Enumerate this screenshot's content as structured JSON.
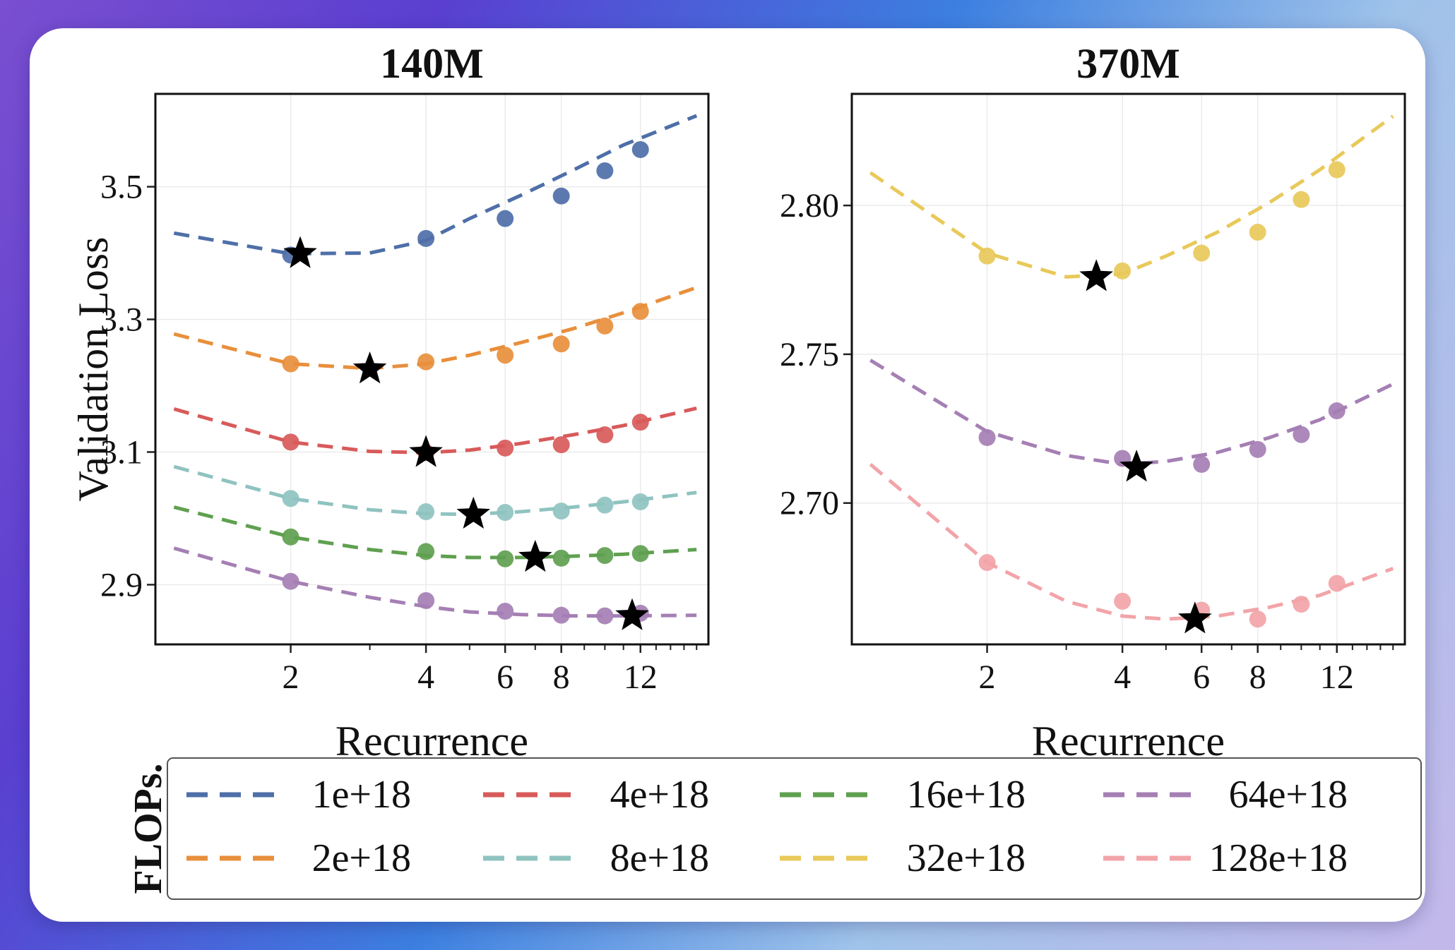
{
  "chart_data": [
    {
      "type": "line",
      "title": "140M",
      "xlabel": "Recurrence",
      "ylabel": "Validation Loss",
      "xscale": "log",
      "xlim": [
        1.0,
        17.0
      ],
      "ylim": [
        2.81,
        3.64
      ],
      "xticks": [
        2,
        4,
        6,
        8,
        12
      ],
      "xtick_labels": [
        "2",
        "4",
        "6",
        "8",
        "12"
      ],
      "yticks": [
        2.9,
        3.1,
        3.3,
        3.5
      ],
      "ytick_labels": [
        "2.9",
        "3.1",
        "3.3",
        "3.5"
      ],
      "grid": true,
      "series": [
        {
          "name": "1e+18",
          "color": "#4e6fa8",
          "x": [
            2,
            4,
            6,
            8,
            10,
            12
          ],
          "values": [
            3.397,
            3.422,
            3.452,
            3.486,
            3.524,
            3.556
          ],
          "fit": [
            3.43,
            3.399,
            3.4,
            3.419,
            3.452,
            3.487,
            3.525,
            3.563,
            3.607
          ],
          "optimum": {
            "x": 2.1,
            "y": 3.399
          }
        },
        {
          "name": "2e+18",
          "color": "#e88f3c",
          "x": [
            2,
            4,
            6,
            8,
            10,
            12
          ],
          "values": [
            3.233,
            3.236,
            3.246,
            3.263,
            3.29,
            3.312
          ],
          "fit": [
            3.278,
            3.233,
            3.226,
            3.233,
            3.246,
            3.265,
            3.286,
            3.31,
            3.348
          ],
          "optimum": {
            "x": 3.0,
            "y": 3.225
          }
        },
        {
          "name": "4e+18",
          "color": "#d85a5a",
          "x": [
            2,
            4,
            6,
            8,
            10,
            12
          ],
          "values": [
            3.115,
            3.099,
            3.106,
            3.111,
            3.126,
            3.145
          ],
          "fit": [
            3.165,
            3.115,
            3.101,
            3.099,
            3.103,
            3.113,
            3.126,
            3.14,
            3.166
          ],
          "optimum": {
            "x": 4.0,
            "y": 3.099
          }
        },
        {
          "name": "8e+18",
          "color": "#8fc3c0",
          "x": [
            2,
            4,
            6,
            8,
            10,
            12
          ],
          "values": [
            3.03,
            3.01,
            3.009,
            3.011,
            3.02,
            3.025
          ],
          "fit": [
            3.078,
            3.03,
            3.013,
            3.007,
            3.006,
            3.01,
            3.017,
            3.025,
            3.039
          ],
          "optimum": {
            "x": 5.1,
            "y": 3.006
          }
        },
        {
          "name": "16e+18",
          "color": "#5fa050",
          "x": [
            2,
            4,
            6,
            8,
            10,
            12
          ],
          "values": [
            2.972,
            2.95,
            2.939,
            2.94,
            2.944,
            2.947
          ],
          "fit": [
            3.017,
            2.972,
            2.953,
            2.944,
            2.941,
            2.941,
            2.943,
            2.946,
            2.953
          ],
          "optimum": {
            "x": 7.0,
            "y": 2.941
          }
        },
        {
          "name": "64e+18",
          "color": "#a57fb4",
          "x": [
            2,
            4,
            6,
            8,
            10,
            12
          ],
          "values": [
            2.905,
            2.876,
            2.86,
            2.854,
            2.853,
            2.857
          ],
          "fit": [
            2.955,
            2.905,
            2.881,
            2.867,
            2.859,
            2.855,
            2.853,
            2.853,
            2.854
          ],
          "optimum": {
            "x": 11.5,
            "y": 2.853
          }
        }
      ]
    },
    {
      "type": "line",
      "title": "370M",
      "xlabel": "Recurrence",
      "ylabel": "",
      "xscale": "log",
      "xlim": [
        1.0,
        17.0
      ],
      "ylim": [
        2.6525,
        2.8375
      ],
      "xticks": [
        2,
        4,
        6,
        8,
        12
      ],
      "xtick_labels": [
        "2",
        "4",
        "6",
        "8",
        "12"
      ],
      "yticks": [
        2.7,
        2.75,
        2.8
      ],
      "ytick_labels": [
        "2.70",
        "2.75",
        "2.80"
      ],
      "grid": true,
      "series": [
        {
          "name": "32e+18",
          "color": "#e8c95a",
          "x": [
            2,
            4,
            6,
            8,
            10,
            12
          ],
          "values": [
            2.783,
            2.778,
            2.784,
            2.791,
            2.802,
            2.812
          ],
          "fit": [
            2.811,
            2.784,
            2.776,
            2.777,
            2.783,
            2.791,
            2.801,
            2.812,
            2.83
          ],
          "optimum": {
            "x": 3.5,
            "y": 2.776
          }
        },
        {
          "name": "64e+18",
          "color": "#a57fb4",
          "x": [
            2,
            4,
            6,
            8,
            10,
            12
          ],
          "values": [
            2.722,
            2.715,
            2.713,
            2.718,
            2.723,
            2.731
          ],
          "fit": [
            2.748,
            2.724,
            2.716,
            2.713,
            2.714,
            2.717,
            2.722,
            2.728,
            2.74
          ],
          "optimum": {
            "x": 4.3,
            "y": 2.712
          }
        },
        {
          "name": "128e+18",
          "color": "#f2a4a8",
          "x": [
            2,
            4,
            6,
            8,
            10,
            12
          ],
          "values": [
            2.68,
            2.667,
            2.664,
            2.661,
            2.666,
            2.673
          ],
          "fit": [
            2.713,
            2.68,
            2.667,
            2.662,
            2.661,
            2.662,
            2.665,
            2.669,
            2.678
          ],
          "optimum": {
            "x": 5.8,
            "y": 2.661
          }
        }
      ]
    }
  ],
  "fit_x": [
    1.1,
    2.0,
    3.0,
    4.0,
    5.0,
    6.5,
    8.5,
    11.0,
    16.0
  ],
  "legend": {
    "title": "FLOPs.",
    "entries": [
      {
        "label": "1e+18",
        "color": "#4e6fa8"
      },
      {
        "label": "4e+18",
        "color": "#d85a5a"
      },
      {
        "label": "16e+18",
        "color": "#5fa050"
      },
      {
        "label": "64e+18",
        "color": "#a57fb4"
      },
      {
        "label": "2e+18",
        "color": "#e88f3c"
      },
      {
        "label": "8e+18",
        "color": "#8fc3c0"
      },
      {
        "label": "32e+18",
        "color": "#e8c95a"
      },
      {
        "label": "128e+18",
        "color": "#f2a4a8"
      }
    ]
  }
}
